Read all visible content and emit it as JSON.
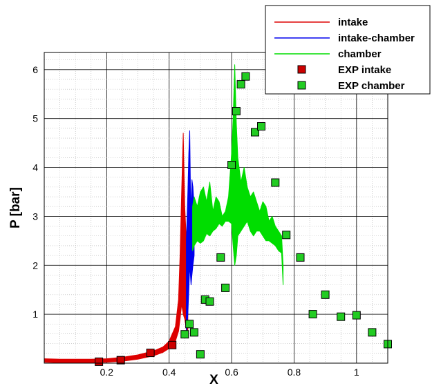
{
  "chart_data": {
    "type": "line",
    "xlabel": "X",
    "ylabel": "P [bar]",
    "xlim": [
      0.0,
      1.1
    ],
    "ylim": [
      0.0,
      6.35
    ],
    "x_ticks": [
      {
        "value": 0.2,
        "label": "0.2"
      },
      {
        "value": 0.4,
        "label": "0.4"
      },
      {
        "value": 0.6,
        "label": "0.6"
      },
      {
        "value": 0.8,
        "label": "0.8"
      },
      {
        "value": 1.0,
        "label": "1"
      }
    ],
    "y_ticks": [
      {
        "value": 1,
        "label": "1"
      },
      {
        "value": 2,
        "label": "2"
      },
      {
        "value": 3,
        "label": "3"
      },
      {
        "value": 4,
        "label": "4"
      },
      {
        "value": 5,
        "label": "5"
      },
      {
        "value": 6,
        "label": "6"
      }
    ],
    "grid": true,
    "legend_position": "top-right",
    "series": [
      {
        "name": "intake",
        "kind": "band",
        "color": "#dd0000",
        "x": [
          0.0,
          0.05,
          0.1,
          0.15,
          0.2,
          0.25,
          0.3,
          0.35,
          0.38,
          0.4,
          0.42,
          0.43,
          0.435,
          0.44,
          0.445,
          0.45,
          0.455,
          0.46
        ],
        "lower": [
          0.02,
          0.01,
          0.01,
          0.01,
          0.02,
          0.04,
          0.08,
          0.15,
          0.22,
          0.3,
          0.45,
          0.65,
          0.9,
          1.2,
          1.0,
          0.9,
          0.7,
          0.6
        ],
        "upper": [
          0.09,
          0.08,
          0.08,
          0.08,
          0.09,
          0.12,
          0.17,
          0.25,
          0.33,
          0.45,
          0.75,
          1.3,
          2.2,
          3.5,
          4.7,
          3.2,
          2.5,
          1.5
        ]
      },
      {
        "name": "intake-chamber",
        "kind": "band",
        "color": "#0000ee",
        "x": [
          0.455,
          0.46,
          0.463,
          0.466,
          0.468,
          0.47,
          0.473,
          0.476,
          0.48
        ],
        "lower": [
          0.6,
          1.0,
          1.5,
          2.0,
          1.8,
          1.6,
          1.8,
          2.0,
          2.2
        ],
        "upper": [
          2.5,
          3.5,
          4.3,
          4.75,
          3.6,
          3.1,
          3.75,
          3.6,
          3.2
        ]
      },
      {
        "name": "chamber",
        "kind": "band",
        "color": "#00dd00",
        "x": [
          0.475,
          0.48,
          0.49,
          0.5,
          0.51,
          0.52,
          0.53,
          0.54,
          0.55,
          0.56,
          0.57,
          0.58,
          0.59,
          0.6,
          0.605,
          0.61,
          0.615,
          0.62,
          0.63,
          0.64,
          0.65,
          0.66,
          0.67,
          0.68,
          0.69,
          0.7,
          0.71,
          0.72,
          0.73,
          0.74,
          0.75,
          0.76,
          0.765
        ],
        "lower": [
          2.3,
          2.4,
          2.5,
          2.45,
          2.5,
          2.65,
          2.6,
          2.7,
          2.75,
          2.85,
          2.8,
          2.9,
          2.9,
          2.85,
          2.4,
          2.0,
          2.2,
          2.6,
          2.7,
          2.8,
          2.9,
          2.7,
          2.6,
          2.7,
          2.7,
          2.6,
          2.5,
          2.5,
          2.45,
          2.4,
          2.3,
          2.25,
          1.6
        ],
        "upper": [
          3.2,
          3.4,
          3.2,
          3.5,
          3.6,
          3.3,
          3.7,
          3.1,
          3.4,
          3.3,
          3.0,
          3.1,
          3.4,
          4.3,
          5.0,
          6.1,
          4.9,
          4.2,
          3.7,
          4.0,
          3.6,
          3.4,
          3.5,
          3.3,
          3.1,
          3.3,
          3.2,
          2.9,
          3.0,
          2.8,
          2.7,
          2.6,
          2.0
        ]
      },
      {
        "name": "EXP intake",
        "kind": "markers",
        "color": "#cc0000",
        "x": [
          0.175,
          0.245,
          0.34,
          0.41
        ],
        "y": [
          0.03,
          0.06,
          0.21,
          0.37
        ]
      },
      {
        "name": "EXP chamber",
        "kind": "markers",
        "color": "#22cc22",
        "x": [
          0.45,
          0.465,
          0.48,
          0.5,
          0.515,
          0.53,
          0.565,
          0.58,
          0.6,
          0.615,
          0.63,
          0.645,
          0.675,
          0.695,
          0.74,
          0.775,
          0.82,
          0.86,
          0.9,
          0.95,
          1.0,
          1.05,
          1.1
        ],
        "y": [
          0.59,
          0.8,
          0.63,
          0.18,
          1.3,
          1.26,
          2.16,
          1.54,
          4.05,
          5.15,
          5.7,
          5.86,
          4.72,
          4.84,
          3.69,
          2.62,
          2.16,
          1.0,
          1.4,
          0.95,
          0.98,
          0.63,
          0.39
        ]
      }
    ]
  }
}
